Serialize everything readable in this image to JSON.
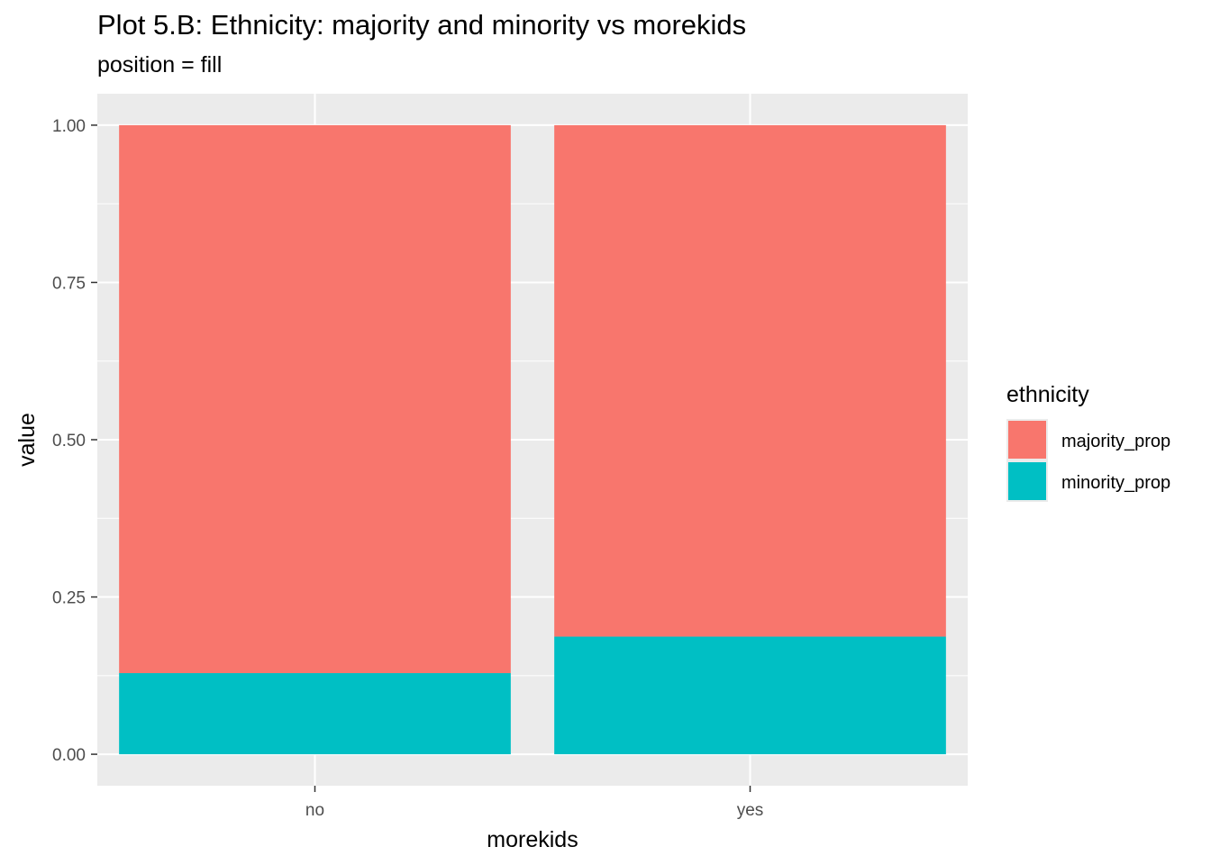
{
  "title": "Plot 5.B: Ethnicity: majority and minority vs morekids",
  "subtitle": "position = fill",
  "colors": {
    "majority_prop": "#F8766D",
    "minority_prop": "#00BFC4",
    "panel_background": "#EBEBEB",
    "grid": "#FFFFFF"
  },
  "chart_data": {
    "type": "bar",
    "stacked": "fill",
    "categories": [
      "no",
      "yes"
    ],
    "series": [
      {
        "name": "majority_prop",
        "values": [
          0.871,
          0.813
        ]
      },
      {
        "name": "minority_prop",
        "values": [
          0.129,
          0.187
        ]
      }
    ],
    "xlabel": "morekids",
    "ylabel": "value",
    "ylim": [
      -0.05,
      1.05
    ],
    "yticks": [
      0.0,
      0.25,
      0.5,
      0.75,
      1.0
    ],
    "ytick_labels": [
      "0.00",
      "0.25",
      "0.50",
      "0.75",
      "1.00"
    ],
    "legend_title": "ethnicity",
    "legend_position": "right",
    "grid": true
  }
}
